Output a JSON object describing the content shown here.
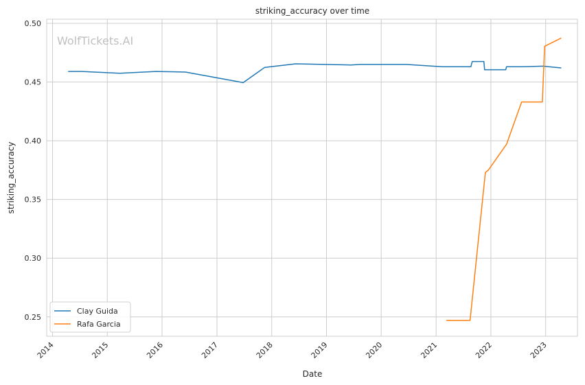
{
  "chart_data": {
    "type": "line",
    "title": "striking_accuracy over time",
    "xlabel": "Date",
    "ylabel": "striking_accuracy",
    "watermark": "WolfTickets.AI",
    "xlim": [
      "2013-11-23",
      "2023-08-01"
    ],
    "ylim": [
      0.2335,
      0.5035
    ],
    "x_ticks": [
      "2014-01-01",
      "2015-01-01",
      "2016-01-01",
      "2017-01-01",
      "2018-01-01",
      "2019-01-01",
      "2020-01-01",
      "2021-01-01",
      "2022-01-01",
      "2023-01-01"
    ],
    "x_tick_labels": [
      "2014",
      "2015",
      "2016",
      "2017",
      "2018",
      "2019",
      "2020",
      "2021",
      "2022",
      "2023"
    ],
    "y_ticks": [
      0.25,
      0.3,
      0.35,
      0.4,
      0.45,
      0.5
    ],
    "y_tick_labels": [
      "0.25",
      "0.30",
      "0.35",
      "0.40",
      "0.45",
      "0.50"
    ],
    "grid": true,
    "legend_position": "lower-left",
    "series": [
      {
        "name": "Clay Guida",
        "color": "#1f77b4",
        "points": [
          [
            "2014-04-15",
            0.459
          ],
          [
            "2014-07-15",
            0.459
          ],
          [
            "2015-03-25",
            0.4575
          ],
          [
            "2015-11-20",
            0.459
          ],
          [
            "2016-06-05",
            0.4585
          ],
          [
            "2017-06-25",
            0.4495
          ],
          [
            "2017-11-15",
            0.4625
          ],
          [
            "2018-06-10",
            0.4655
          ],
          [
            "2019-06-10",
            0.4645
          ],
          [
            "2019-08-15",
            0.465
          ],
          [
            "2020-06-15",
            0.465
          ],
          [
            "2021-02-15",
            0.463
          ],
          [
            "2021-08-20",
            0.463
          ],
          [
            "2021-08-30",
            0.4675
          ],
          [
            "2021-11-15",
            0.4675
          ],
          [
            "2021-11-20",
            0.4605
          ],
          [
            "2022-04-10",
            0.4605
          ],
          [
            "2022-04-15",
            0.463
          ],
          [
            "2022-07-20",
            0.463
          ],
          [
            "2022-12-15",
            0.4635
          ],
          [
            "2023-04-15",
            0.462
          ]
        ]
      },
      {
        "name": "Rafa Garcia",
        "color": "#ff7f0e",
        "points": [
          [
            "2021-03-10",
            0.247
          ],
          [
            "2021-08-15",
            0.247
          ],
          [
            "2021-11-25",
            0.373
          ],
          [
            "2021-12-15",
            0.375
          ],
          [
            "2022-04-15",
            0.397
          ],
          [
            "2022-07-25",
            0.433
          ],
          [
            "2022-12-10",
            0.433
          ],
          [
            "2022-12-25",
            0.4805
          ],
          [
            "2023-04-15",
            0.4875
          ]
        ]
      }
    ]
  }
}
